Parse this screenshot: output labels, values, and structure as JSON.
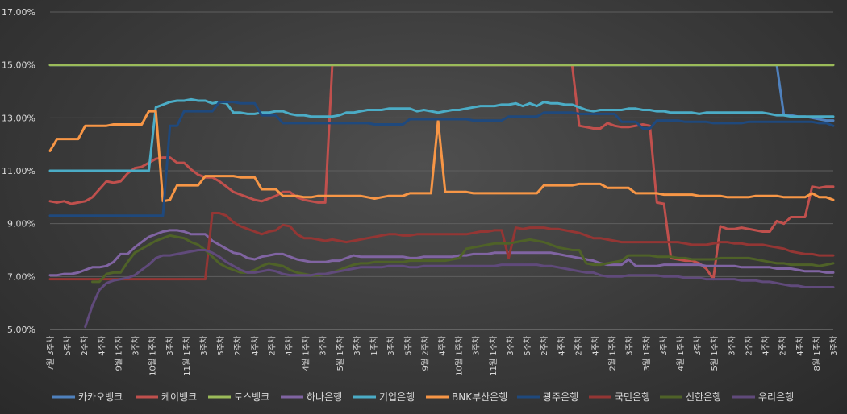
{
  "chart_data": {
    "type": "line",
    "title": "",
    "xlabel": "",
    "ylabel": "",
    "ylim": [
      5,
      17
    ],
    "yticks": [
      "5.00%",
      "7.00%",
      "9.00%",
      "11.00%",
      "13.00%",
      "15.00%",
      "17.00%"
    ],
    "grid": "horizontal",
    "legend_position": "bottom",
    "x_count": 112,
    "xtick_labels": [
      "7월 3주차",
      "5주차",
      "2주차",
      "4주차",
      "9월 1주차",
      "3주차",
      "10월 1주차",
      "3주차",
      "11월 1주차",
      "3주차",
      "5주차",
      "2주차",
      "4주차",
      "2주차",
      "4주차",
      "4월 1주차",
      "3주차",
      "5월 1주차",
      "3주차",
      "1주차",
      "3주차",
      "5주차",
      "9월 2주차",
      "4주차",
      "10월 1주차",
      "3주차",
      "11월 1주차",
      "3주차",
      "5주차",
      "2주차",
      "4주차",
      "2주차",
      "4주차",
      "2월 1주차",
      "3주차",
      "3월 1주차",
      "3주차",
      "4월 1주차",
      "3주차",
      "5월 1주차",
      "3주차",
      "2주차",
      "4주차",
      "2주차",
      "4주차",
      "8월 1주차",
      "3주차"
    ],
    "series": [
      {
        "name": "카카오뱅크",
        "color": "#4f81bd",
        "values": [
          15,
          15,
          15,
          15,
          15,
          15,
          15,
          15,
          15,
          15,
          15,
          15,
          15,
          15,
          15,
          15,
          15,
          15,
          15,
          15,
          15,
          15,
          15,
          15,
          15,
          15,
          15,
          15,
          15,
          15,
          15,
          15,
          15,
          15,
          15,
          15,
          15,
          15,
          15,
          15,
          15,
          15,
          15,
          15,
          15,
          15,
          15,
          15,
          15,
          15,
          15,
          15,
          15,
          15,
          15,
          15,
          15,
          15,
          15,
          15,
          15,
          15,
          15,
          15,
          15,
          15,
          15,
          15,
          15,
          15,
          15,
          15,
          15,
          15,
          15,
          15,
          15,
          15,
          15,
          15,
          15,
          15,
          15,
          15,
          15,
          15,
          15,
          15,
          15,
          15,
          15,
          15,
          15,
          15,
          15,
          15,
          15,
          15,
          15,
          15,
          15,
          15,
          15,
          15,
          13.1,
          13.1,
          13.05,
          13.05,
          13,
          12.95,
          12.9,
          12.9
        ]
      },
      {
        "name": "케이뱅크",
        "color": "#c0504d",
        "values": [
          9.85,
          9.8,
          9.85,
          9.75,
          9.8,
          9.85,
          10,
          10.3,
          10.6,
          10.55,
          10.6,
          10.9,
          11.1,
          11.15,
          11.3,
          11.45,
          11.5,
          11.5,
          11.3,
          11.3,
          11.05,
          10.85,
          10.75,
          10.75,
          10.6,
          10.4,
          10.2,
          10.1,
          10,
          9.9,
          9.85,
          9.95,
          10.05,
          10.2,
          10.2,
          10,
          9.9,
          9.85,
          9.8,
          9.8,
          15,
          15,
          15,
          15,
          15,
          15,
          15,
          15,
          15,
          15,
          15,
          15,
          15,
          15,
          15,
          15,
          15,
          15,
          15,
          15,
          15,
          15,
          15,
          15,
          15,
          15,
          15,
          15,
          15,
          15,
          15,
          15,
          15,
          15,
          15,
          12.7,
          12.65,
          12.6,
          12.6,
          12.8,
          12.7,
          12.65,
          12.65,
          12.7,
          12.75,
          12.7,
          9.8,
          9.75,
          7.7,
          7.65,
          7.6,
          7.6,
          7.5,
          7.3,
          6.9,
          8.9,
          8.8,
          8.8,
          8.85,
          8.8,
          8.75,
          8.7,
          8.7,
          9.1,
          9.0,
          9.25,
          9.25,
          9.25,
          10.4,
          10.35,
          10.4,
          10.4
        ]
      },
      {
        "name": "토스뱅크",
        "color": "#9bbb59",
        "values": [
          15,
          15,
          15,
          15,
          15,
          15,
          15,
          15,
          15,
          15,
          15,
          15,
          15,
          15,
          15,
          15,
          15,
          15,
          15,
          15,
          15,
          15,
          15,
          15,
          15,
          15,
          15,
          15,
          15,
          15,
          15,
          15,
          15,
          15,
          15,
          15,
          15,
          15,
          15,
          15,
          15,
          15,
          15,
          15,
          15,
          15,
          15,
          15,
          15,
          15,
          15,
          15,
          15,
          15,
          15,
          15,
          15,
          15,
          15,
          15,
          15,
          15,
          15,
          15,
          15,
          15,
          15,
          15,
          15,
          15,
          15,
          15,
          15,
          15,
          15,
          15,
          15,
          15,
          15,
          15,
          15,
          15,
          15,
          15,
          15,
          15,
          15,
          15,
          15,
          15,
          15,
          15,
          15,
          15,
          15,
          15,
          15,
          15,
          15,
          15,
          15,
          15,
          15,
          15,
          15,
          15,
          15,
          15,
          15,
          15,
          15,
          15
        ]
      },
      {
        "name": "하나은행",
        "color": "#8064a2",
        "values": [
          7.05,
          7.05,
          7.1,
          7.1,
          7.15,
          7.25,
          7.35,
          7.35,
          7.4,
          7.55,
          7.85,
          7.85,
          8.1,
          8.3,
          8.5,
          8.6,
          8.7,
          8.75,
          8.75,
          8.7,
          8.6,
          8.6,
          8.6,
          8.35,
          8.2,
          8.05,
          7.9,
          7.85,
          7.7,
          7.65,
          7.75,
          7.8,
          7.85,
          7.85,
          7.75,
          7.65,
          7.6,
          7.55,
          7.55,
          7.55,
          7.6,
          7.6,
          7.7,
          7.8,
          7.75,
          7.75,
          7.75,
          7.75,
          7.75,
          7.75,
          7.75,
          7.7,
          7.7,
          7.75,
          7.75,
          7.75,
          7.75,
          7.75,
          7.8,
          7.8,
          7.85,
          7.85,
          7.85,
          7.9,
          7.9,
          7.9,
          7.9,
          7.9,
          7.9,
          7.9,
          7.9,
          7.9,
          7.85,
          7.8,
          7.75,
          7.7,
          7.65,
          7.6,
          7.5,
          7.45,
          7.45,
          7.45,
          7.65,
          7.4,
          7.4,
          7.4,
          7.4,
          7.45,
          7.45,
          7.45,
          7.45,
          7.45,
          7.45,
          7.4,
          7.4,
          7.4,
          7.4,
          7.4,
          7.35,
          7.35,
          7.35,
          7.35,
          7.35,
          7.3,
          7.3,
          7.3,
          7.25,
          7.2,
          7.2,
          7.2,
          7.15,
          7.15
        ]
      },
      {
        "name": "기업은행",
        "color": "#4bacc6",
        "values": [
          11,
          11,
          11,
          11,
          11,
          11,
          11,
          11,
          11,
          11,
          11,
          11,
          11,
          11,
          11,
          13.4,
          13.5,
          13.6,
          13.65,
          13.65,
          13.7,
          13.65,
          13.65,
          13.55,
          13.6,
          13.55,
          13.2,
          13.2,
          13.15,
          13.15,
          13.2,
          13.2,
          13.25,
          13.25,
          13.15,
          13.1,
          13.1,
          13.05,
          13.05,
          13.05,
          13.05,
          13.1,
          13.2,
          13.2,
          13.25,
          13.3,
          13.3,
          13.3,
          13.35,
          13.35,
          13.35,
          13.35,
          13.25,
          13.3,
          13.25,
          13.2,
          13.25,
          13.3,
          13.3,
          13.35,
          13.4,
          13.45,
          13.45,
          13.45,
          13.5,
          13.5,
          13.55,
          13.45,
          13.55,
          13.45,
          13.6,
          13.55,
          13.55,
          13.5,
          13.5,
          13.4,
          13.3,
          13.25,
          13.3,
          13.3,
          13.3,
          13.3,
          13.35,
          13.35,
          13.3,
          13.3,
          13.25,
          13.25,
          13.2,
          13.2,
          13.2,
          13.2,
          13.15,
          13.2,
          13.2,
          13.2,
          13.2,
          13.2,
          13.2,
          13.2,
          13.2,
          13.2,
          13.15,
          13.1,
          13.1,
          13.05,
          13.05,
          13.05,
          13.05,
          13.05,
          13.05,
          13.05
        ]
      },
      {
        "name": "BNK부산은행",
        "color": "#f79646",
        "values": [
          11.75,
          12.2,
          12.2,
          12.2,
          12.2,
          12.7,
          12.7,
          12.7,
          12.7,
          12.75,
          12.75,
          12.75,
          12.75,
          12.75,
          13.25,
          13.25,
          9.85,
          9.9,
          10.45,
          10.45,
          10.45,
          10.45,
          10.8,
          10.8,
          10.8,
          10.8,
          10.8,
          10.75,
          10.75,
          10.75,
          10.3,
          10.3,
          10.3,
          10.05,
          10.05,
          10.05,
          10.0,
          10.0,
          10.05,
          10.05,
          10.05,
          10.05,
          10.05,
          10.05,
          10.05,
          10.0,
          9.95,
          10.0,
          10.05,
          10.05,
          10.05,
          10.15,
          10.15,
          10.15,
          10.15,
          12.9,
          10.2,
          10.2,
          10.2,
          10.2,
          10.15,
          10.15,
          10.15,
          10.15,
          10.15,
          10.15,
          10.15,
          10.15,
          10.15,
          10.15,
          10.45,
          10.45,
          10.45,
          10.45,
          10.45,
          10.5,
          10.5,
          10.5,
          10.5,
          10.35,
          10.35,
          10.35,
          10.35,
          10.15,
          10.15,
          10.15,
          10.15,
          10.1,
          10.1,
          10.1,
          10.1,
          10.1,
          10.05,
          10.05,
          10.05,
          10.05,
          10.0,
          10.0,
          10.0,
          10.0,
          10.05,
          10.05,
          10.05,
          10.05,
          10.0,
          10.0,
          10.0,
          10.0,
          10.15,
          10.0,
          10.0,
          9.9
        ]
      },
      {
        "name": "광주은행",
        "color": "#1f497d",
        "values": [
          9.3,
          9.3,
          9.3,
          9.3,
          9.3,
          9.3,
          9.3,
          9.3,
          9.3,
          9.3,
          9.3,
          9.3,
          9.3,
          9.3,
          9.3,
          9.3,
          9.3,
          12.7,
          12.7,
          13.25,
          13.25,
          13.25,
          13.25,
          13.25,
          13.6,
          13.6,
          13.6,
          13.55,
          13.55,
          13.55,
          13.1,
          13.1,
          13.1,
          12.8,
          12.8,
          12.8,
          12.8,
          12.8,
          12.8,
          12.8,
          12.8,
          12.8,
          12.8,
          12.8,
          12.8,
          12.8,
          12.75,
          12.75,
          12.75,
          12.75,
          12.75,
          12.95,
          12.95,
          12.95,
          12.95,
          12.95,
          12.95,
          12.95,
          12.95,
          12.95,
          12.9,
          12.9,
          12.9,
          12.9,
          12.9,
          13.05,
          13.05,
          13.05,
          13.05,
          13.05,
          13.2,
          13.2,
          13.2,
          13.2,
          13.2,
          13.15,
          13.15,
          13.15,
          13.15,
          13.15,
          13.15,
          12.85,
          12.85,
          12.85,
          12.6,
          12.6,
          12.9,
          12.9,
          12.9,
          12.9,
          12.85,
          12.85,
          12.85,
          12.85,
          12.8,
          12.8,
          12.8,
          12.8,
          12.8,
          12.85,
          12.85,
          12.85,
          12.85,
          12.85,
          12.85,
          12.85,
          12.85,
          12.85,
          12.85,
          12.8,
          12.8,
          12.7
        ]
      },
      {
        "name": "국민은행",
        "color": "#943634",
        "values": [
          6.9,
          6.9,
          6.9,
          6.9,
          6.9,
          6.9,
          6.9,
          6.9,
          6.9,
          6.9,
          6.9,
          6.9,
          6.9,
          6.9,
          6.9,
          6.9,
          6.9,
          6.9,
          6.9,
          6.9,
          6.9,
          6.9,
          6.9,
          9.4,
          9.4,
          9.3,
          9.05,
          8.9,
          8.8,
          8.7,
          8.6,
          8.7,
          8.75,
          8.95,
          8.9,
          8.6,
          8.45,
          8.45,
          8.4,
          8.35,
          8.4,
          8.35,
          8.3,
          8.35,
          8.4,
          8.45,
          8.5,
          8.55,
          8.6,
          8.6,
          8.55,
          8.55,
          8.6,
          8.6,
          8.6,
          8.6,
          8.6,
          8.6,
          8.6,
          8.6,
          8.65,
          8.7,
          8.7,
          8.75,
          8.75,
          7.7,
          8.85,
          8.8,
          8.85,
          8.85,
          8.85,
          8.8,
          8.8,
          8.75,
          8.7,
          8.65,
          8.55,
          8.45,
          8.45,
          8.4,
          8.35,
          8.3,
          8.3,
          8.3,
          8.3,
          8.3,
          8.3,
          8.3,
          8.3,
          8.3,
          8.25,
          8.2,
          8.2,
          8.2,
          8.25,
          8.3,
          8.3,
          8.25,
          8.25,
          8.2,
          8.2,
          8.2,
          8.15,
          8.1,
          8.05,
          7.95,
          7.9,
          7.85,
          7.85,
          7.8,
          7.8,
          7.8
        ]
      },
      {
        "name": "신한은행",
        "color": "#4f6228",
        "values": [
          null,
          null,
          null,
          null,
          null,
          null,
          6.8,
          6.8,
          7.1,
          7.15,
          7.15,
          7.55,
          7.9,
          8.05,
          8.2,
          8.35,
          8.45,
          8.55,
          8.5,
          8.45,
          8.3,
          8.2,
          8.0,
          7.75,
          7.5,
          7.35,
          7.25,
          7.15,
          7.15,
          7.25,
          7.4,
          7.5,
          7.45,
          7.4,
          7.25,
          7.15,
          7.1,
          7.05,
          7.05,
          7.1,
          7.15,
          7.25,
          7.35,
          7.45,
          7.5,
          7.5,
          7.55,
          7.55,
          7.55,
          7.55,
          7.55,
          7.6,
          7.6,
          7.6,
          7.6,
          7.6,
          7.6,
          7.65,
          7.7,
          8.05,
          8.1,
          8.15,
          8.2,
          8.25,
          8.25,
          8.25,
          8.3,
          8.35,
          8.4,
          8.35,
          8.3,
          8.2,
          8.1,
          8.05,
          8.0,
          8.0,
          7.5,
          7.45,
          7.45,
          7.5,
          7.55,
          7.6,
          7.8,
          7.8,
          7.8,
          7.8,
          7.75,
          7.75,
          7.75,
          7.7,
          7.7,
          7.65,
          7.65,
          7.65,
          7.65,
          7.7,
          7.7,
          7.7,
          7.7,
          7.7,
          7.65,
          7.6,
          7.55,
          7.5,
          7.5,
          7.45,
          7.45,
          7.45,
          7.45,
          7.4,
          7.45,
          7.5
        ]
      },
      {
        "name": "우리은행",
        "color": "#604a7b",
        "values": [
          null,
          null,
          null,
          null,
          null,
          5.1,
          5.9,
          6.5,
          6.75,
          6.85,
          6.9,
          6.95,
          7.05,
          7.25,
          7.45,
          7.7,
          7.8,
          7.8,
          7.85,
          7.9,
          7.95,
          8.0,
          8.0,
          7.9,
          7.75,
          7.55,
          7.4,
          7.25,
          7.15,
          7.15,
          7.2,
          7.25,
          7.2,
          7.1,
          7.05,
          7.05,
          7.05,
          7.05,
          7.1,
          7.1,
          7.15,
          7.2,
          7.25,
          7.3,
          7.35,
          7.35,
          7.35,
          7.35,
          7.4,
          7.4,
          7.4,
          7.35,
          7.35,
          7.4,
          7.4,
          7.4,
          7.4,
          7.4,
          7.4,
          7.4,
          7.4,
          7.4,
          7.4,
          7.4,
          7.45,
          7.45,
          7.45,
          7.45,
          7.45,
          7.45,
          7.4,
          7.4,
          7.35,
          7.3,
          7.25,
          7.2,
          7.15,
          7.15,
          7.05,
          7.0,
          7.0,
          7.0,
          7.05,
          7.05,
          7.05,
          7.05,
          7.05,
          7.0,
          7.0,
          7.0,
          6.95,
          6.95,
          6.95,
          6.9,
          6.9,
          6.9,
          6.9,
          6.9,
          6.85,
          6.85,
          6.85,
          6.8,
          6.8,
          6.75,
          6.7,
          6.65,
          6.65,
          6.6,
          6.6,
          6.6,
          6.6,
          6.6
        ]
      }
    ]
  }
}
